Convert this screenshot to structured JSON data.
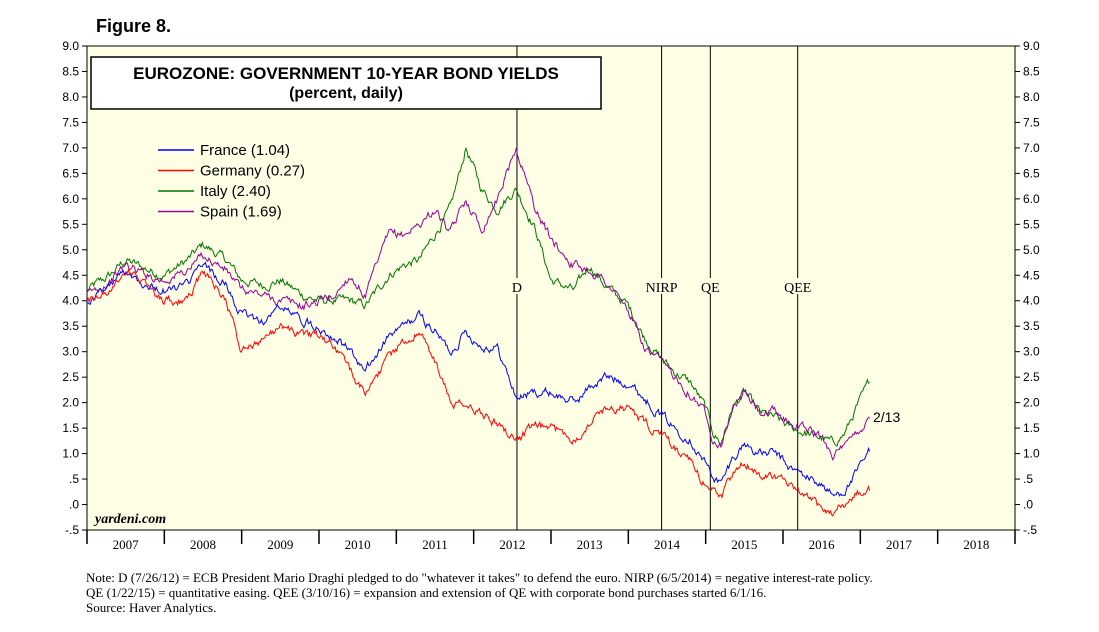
{
  "figure_label": "Figure 8.",
  "watermark": "yardeni.com",
  "notes": [
    "Note: D (7/26/12) = ECB President Mario Draghi pledged to do \"whatever it takes\" to defend the euro. NIRP (6/5/2014) = negative interest-rate policy.",
    "QE (1/22/15) = quantitative easing. QEE (3/10/16) = expansion and extension of QE with corporate bond purchases started 6/1/16.",
    "Source: Haver Analytics."
  ],
  "colors": {
    "plot_bg": "#ffffe6",
    "france": "#0000ff",
    "germany": "#ff0000",
    "italy": "#007700",
    "spain": "#990099"
  },
  "chart_data": {
    "type": "line",
    "title": "EUROZONE: GOVERNMENT 10-YEAR BOND YIELDS",
    "subtitle": "(percent, daily)",
    "ylim": [
      -0.5,
      9.0
    ],
    "xlim": [
      2007.0,
      2019.0
    ],
    "y_ticks_left": [
      "9.0",
      "8.5",
      "8.0",
      "7.5",
      "7.0",
      "6.5",
      "6.0",
      "5.5",
      "5.0",
      "4.5",
      "4.0",
      "3.5",
      "3.0",
      "2.5",
      "2.0",
      "1.5",
      "1.0",
      ".5",
      ".0",
      "-.5"
    ],
    "y_ticks_right": [
      "9.0",
      "8.5",
      "8.0",
      "7.5",
      "7.0",
      "6.5",
      "6.0",
      "5.5",
      "5.0",
      "4.5",
      "4.0",
      "3.5",
      "3.0",
      "2.5",
      "2.0",
      "1.5",
      "1.0",
      ".5",
      ".0",
      "-.5"
    ],
    "x_tick_labels": [
      "2007",
      "2008",
      "2009",
      "2010",
      "2011",
      "2012",
      "2013",
      "2014",
      "2015",
      "2016",
      "2017",
      "2018"
    ],
    "legend_position": "upper-left",
    "series": [
      {
        "name": "France (1.04)",
        "key": "france",
        "x": [
          2007.0,
          2007.3,
          2007.5,
          2007.8,
          2008.0,
          2008.3,
          2008.5,
          2008.8,
          2009.0,
          2009.3,
          2009.5,
          2009.8,
          2010.0,
          2010.2,
          2010.4,
          2010.6,
          2010.9,
          2011.1,
          2011.3,
          2011.5,
          2011.7,
          2011.9,
          2012.1,
          2012.3,
          2012.55,
          2012.8,
          2013.0,
          2013.3,
          2013.5,
          2013.7,
          2014.0,
          2014.2,
          2014.4,
          2014.6,
          2014.8,
          2015.0,
          2015.1,
          2015.2,
          2015.35,
          2015.5,
          2015.7,
          2015.9,
          2016.1,
          2016.3,
          2016.5,
          2016.65,
          2016.8,
          2016.95,
          2017.12
        ],
        "values": [
          4.0,
          4.3,
          4.6,
          4.3,
          4.2,
          4.3,
          4.7,
          4.3,
          3.7,
          3.6,
          3.9,
          3.6,
          3.5,
          3.3,
          3.0,
          2.6,
          3.3,
          3.5,
          3.7,
          3.4,
          3.0,
          3.4,
          3.1,
          3.1,
          2.1,
          2.2,
          2.2,
          2.0,
          2.3,
          2.5,
          2.4,
          2.1,
          1.8,
          1.5,
          1.3,
          0.8,
          0.55,
          0.4,
          0.9,
          1.2,
          1.0,
          1.0,
          0.7,
          0.55,
          0.4,
          0.15,
          0.3,
          0.6,
          1.04
        ]
      },
      {
        "name": "Germany (0.27)",
        "key": "germany",
        "x": [
          2007.0,
          2007.3,
          2007.5,
          2007.8,
          2008.0,
          2008.3,
          2008.5,
          2008.8,
          2009.0,
          2009.3,
          2009.5,
          2009.8,
          2010.0,
          2010.2,
          2010.4,
          2010.6,
          2010.9,
          2011.1,
          2011.3,
          2011.5,
          2011.7,
          2011.9,
          2012.1,
          2012.3,
          2012.55,
          2012.8,
          2013.0,
          2013.3,
          2013.5,
          2013.7,
          2014.0,
          2014.2,
          2014.4,
          2014.6,
          2014.8,
          2015.0,
          2015.1,
          2015.2,
          2015.35,
          2015.5,
          2015.7,
          2015.9,
          2016.1,
          2016.3,
          2016.5,
          2016.65,
          2016.8,
          2016.95,
          2017.12
        ],
        "values": [
          4.0,
          4.2,
          4.6,
          4.3,
          4.0,
          4.0,
          4.6,
          4.0,
          3.0,
          3.3,
          3.5,
          3.3,
          3.3,
          3.1,
          2.6,
          2.2,
          2.9,
          3.2,
          3.4,
          2.8,
          2.0,
          1.9,
          1.8,
          1.6,
          1.3,
          1.5,
          1.5,
          1.3,
          1.6,
          1.9,
          1.9,
          1.6,
          1.4,
          1.1,
          0.8,
          0.4,
          0.3,
          0.15,
          0.6,
          0.8,
          0.6,
          0.6,
          0.3,
          0.15,
          -0.1,
          -0.15,
          0.0,
          0.2,
          0.27
        ]
      },
      {
        "name": "Italy (2.40)",
        "key": "italy",
        "x": [
          2007.0,
          2007.3,
          2007.5,
          2007.8,
          2008.0,
          2008.3,
          2008.5,
          2008.8,
          2009.0,
          2009.3,
          2009.5,
          2009.8,
          2010.0,
          2010.2,
          2010.4,
          2010.6,
          2010.9,
          2011.1,
          2011.3,
          2011.5,
          2011.7,
          2011.9,
          2012.1,
          2012.3,
          2012.55,
          2012.8,
          2013.0,
          2013.3,
          2013.5,
          2013.7,
          2014.0,
          2014.2,
          2014.4,
          2014.6,
          2014.8,
          2015.0,
          2015.1,
          2015.2,
          2015.35,
          2015.5,
          2015.7,
          2015.9,
          2016.1,
          2016.3,
          2016.5,
          2016.65,
          2016.8,
          2016.95,
          2017.12
        ],
        "values": [
          4.2,
          4.5,
          4.8,
          4.6,
          4.5,
          4.8,
          5.1,
          4.8,
          4.4,
          4.3,
          4.4,
          4.1,
          4.0,
          4.0,
          4.0,
          3.9,
          4.5,
          4.7,
          4.8,
          5.3,
          5.8,
          7.0,
          6.2,
          5.8,
          6.2,
          5.4,
          4.4,
          4.2,
          4.7,
          4.3,
          3.9,
          3.3,
          2.9,
          2.6,
          2.4,
          1.9,
          1.4,
          1.2,
          1.9,
          2.2,
          1.8,
          1.7,
          1.5,
          1.4,
          1.3,
          1.2,
          1.4,
          1.9,
          2.4
        ]
      },
      {
        "name": "Spain (1.69)",
        "key": "spain",
        "x": [
          2007.0,
          2007.3,
          2007.5,
          2007.8,
          2008.0,
          2008.3,
          2008.5,
          2008.8,
          2009.0,
          2009.3,
          2009.5,
          2009.8,
          2010.0,
          2010.2,
          2010.4,
          2010.6,
          2010.9,
          2011.1,
          2011.3,
          2011.5,
          2011.7,
          2011.9,
          2012.1,
          2012.3,
          2012.55,
          2012.8,
          2013.0,
          2013.3,
          2013.5,
          2013.7,
          2014.0,
          2014.2,
          2014.4,
          2014.6,
          2014.8,
          2015.0,
          2015.1,
          2015.2,
          2015.35,
          2015.5,
          2015.7,
          2015.9,
          2016.1,
          2016.3,
          2016.5,
          2016.65,
          2016.8,
          2016.95,
          2017.12
        ],
        "values": [
          4.1,
          4.4,
          4.7,
          4.5,
          4.4,
          4.6,
          4.9,
          4.6,
          4.2,
          4.1,
          4.0,
          3.9,
          4.0,
          4.1,
          4.5,
          4.1,
          5.3,
          5.3,
          5.5,
          5.8,
          5.3,
          6.0,
          5.4,
          6.0,
          7.0,
          5.8,
          5.2,
          4.7,
          4.6,
          4.4,
          3.8,
          3.1,
          2.8,
          2.5,
          2.2,
          1.8,
          1.3,
          1.2,
          1.9,
          2.2,
          1.8,
          1.8,
          1.6,
          1.5,
          1.3,
          1.0,
          1.1,
          1.4,
          1.69
        ]
      }
    ],
    "event_lines": [
      {
        "label": "D",
        "x": 2012.56
      },
      {
        "label": "NIRP",
        "x": 2014.43
      },
      {
        "label": "QE",
        "x": 2015.06
      },
      {
        "label": "QEE",
        "x": 2016.19
      }
    ],
    "end_annotation": "2/13"
  }
}
